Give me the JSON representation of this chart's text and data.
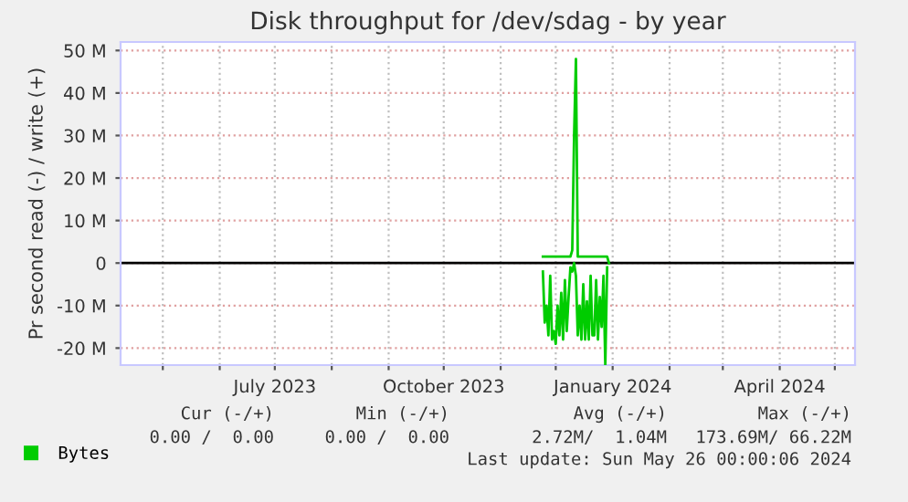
{
  "chart_data": {
    "type": "line",
    "title": "Disk throughput for /dev/sdag - by year",
    "ylabel": "Pr second read (-) / write (+)",
    "xlim": [
      "2023-04-08",
      "2024-05-12"
    ],
    "ylim": [
      -24,
      52
    ],
    "xticks": [
      {
        "value": "2023-05-01",
        "label": null
      },
      {
        "value": "2023-06-01",
        "label": null
      },
      {
        "value": "2023-07-01",
        "label": "July 2023"
      },
      {
        "value": "2023-08-01",
        "label": null
      },
      {
        "value": "2023-09-01",
        "label": null
      },
      {
        "value": "2023-10-01",
        "label": "October 2023"
      },
      {
        "value": "2023-11-01",
        "label": null
      },
      {
        "value": "2023-12-01",
        "label": null
      },
      {
        "value": "2024-01-01",
        "label": "January 2024"
      },
      {
        "value": "2024-02-01",
        "label": null
      },
      {
        "value": "2024-03-01",
        "label": null
      },
      {
        "value": "2024-04-01",
        "label": "April 2024"
      },
      {
        "value": "2024-05-01",
        "label": null
      }
    ],
    "yticks": [
      {
        "value": -20,
        "label": "-20 M"
      },
      {
        "value": -10,
        "label": "-10 M"
      },
      0,
      {
        "value": 10,
        "label": "10 M"
      },
      {
        "value": 20,
        "label": "20 M"
      },
      {
        "value": 30,
        "label": "30 M"
      },
      {
        "value": 40,
        "label": "40 M"
      },
      {
        "value": 50,
        "label": "50 M"
      }
    ],
    "grid": true,
    "legend": "bottom",
    "marker": "none",
    "line_style": "solid",
    "ref_lines": [
      {
        "axis": "y",
        "value": 0,
        "label": null,
        "color": "#000000"
      }
    ],
    "series": [
      {
        "name": "Bytes",
        "color": "#00cc00",
        "x": [
          "2023-11-24",
          "2023-12-09",
          "2023-12-10",
          "2023-12-11",
          "2023-12-12",
          "2023-12-13",
          "2023-12-29",
          "2023-12-30"
        ],
        "values": [
          1.5,
          1.5,
          3,
          30,
          48,
          1.5,
          1.5,
          0
        ]
      },
      {
        "color": "#00cc00",
        "x": [
          "2023-11-24",
          "2023-11-25",
          "2023-11-26",
          "2023-11-27",
          "2023-11-28",
          "2023-11-29",
          "2023-11-30",
          "2023-12-01",
          "2023-12-02",
          "2023-12-03",
          "2023-12-04",
          "2023-12-05",
          "2023-12-06",
          "2023-12-07",
          "2023-12-08",
          "2023-12-09",
          "2023-12-10",
          "2023-12-11",
          "2023-12-12",
          "2023-12-13",
          "2023-12-14",
          "2023-12-15",
          "2023-12-16",
          "2023-12-17",
          "2023-12-18",
          "2023-12-19",
          "2023-12-20",
          "2023-12-21",
          "2023-12-22",
          "2023-12-23",
          "2023-12-24",
          "2023-12-25",
          "2023-12-26",
          "2023-12-27",
          "2023-12-28",
          "2023-12-29"
        ],
        "values": [
          -2,
          -14,
          -10,
          -17,
          -3,
          -18,
          -16,
          -19,
          -10,
          -17,
          -7,
          -18,
          -4,
          -16,
          -8,
          -1,
          -2,
          0,
          -3,
          -17,
          -10,
          -18,
          -5,
          -18,
          -9,
          -18,
          -3,
          -17,
          -17,
          -4,
          -18,
          -8,
          -15,
          -3,
          -24,
          -1
        ]
      }
    ],
    "annotations": [
      "Cur (-/+)",
      "Min (-/+)",
      "Avg (-/+)",
      "Max (-/+)",
      "0.00 /  0.00",
      "0.00 /  0.00",
      "2.72M/  1.04M",
      "173.69M/ 66.22M",
      "Last update: Sun May 26 00:00:06 2024"
    ]
  }
}
